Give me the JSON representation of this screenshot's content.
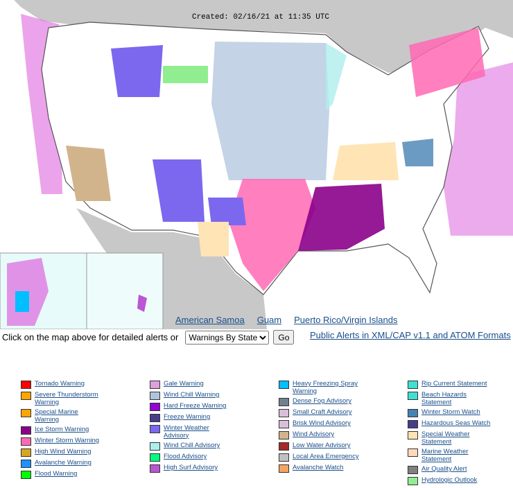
{
  "header": {
    "created": "Created: 02/16/21 at 11:35 UTC"
  },
  "map_links": [
    "American Samoa",
    "Guam",
    "Puerto Rico/Virgin Islands"
  ],
  "controls": {
    "prompt": "Click on the map above for detailed alerts or",
    "select": "Warnings By State",
    "button": "Go",
    "feed_link": "Public Alerts in XML/CAP v1.1 and ATOM Formats"
  },
  "legend": [
    [
      {
        "label": "Tornado Warning",
        "color": "#ff0000"
      },
      {
        "label": "Severe Thunderstorm Warning",
        "color": "#ffa500"
      },
      {
        "label": "Special Marine Warning",
        "color": "#ffa500"
      },
      {
        "label": "Ice Storm Warning",
        "color": "#8b008b"
      },
      {
        "label": "Winter Storm Warning",
        "color": "#ff69b4"
      },
      {
        "label": "High Wind Warning",
        "color": "#daa520"
      },
      {
        "label": "Avalanche Warning",
        "color": "#1e90ff"
      },
      {
        "label": "Flood Warning",
        "color": "#00ff00"
      }
    ],
    [
      {
        "label": "Gale Warning",
        "color": "#dda0dd"
      },
      {
        "label": "Wind Chill Warning",
        "color": "#b0c4de"
      },
      {
        "label": "Hard Freeze Warning",
        "color": "#9400d3"
      },
      {
        "label": "Freeze Warning",
        "color": "#483d8b"
      },
      {
        "label": "Winter Weather Advisory",
        "color": "#7b68ee"
      },
      {
        "label": "Wind Chill Advisory",
        "color": "#afeeee"
      },
      {
        "label": "Flood Advisory",
        "color": "#00ff7f"
      },
      {
        "label": "High Surf Advisory",
        "color": "#ba55d3"
      }
    ],
    [
      {
        "label": "Heavy Freezing Spray Warning",
        "color": "#00bfff"
      },
      {
        "label": "Dense Fog Advisory",
        "color": "#708090"
      },
      {
        "label": "Small Craft Advisory",
        "color": "#d8bfd8"
      },
      {
        "label": "Brisk Wind Advisory",
        "color": "#d8bfd8"
      },
      {
        "label": "Wind Advisory",
        "color": "#d2b48c"
      },
      {
        "label": "Low Water Advisory",
        "color": "#a52a2a"
      },
      {
        "label": "Local Area Emergency",
        "color": "#c0c0c0"
      },
      {
        "label": "Avalanche Watch",
        "color": "#f4a460"
      }
    ],
    [
      {
        "label": "Rip Current Statement",
        "color": "#40e0d0"
      },
      {
        "label": "Beach Hazards Statement",
        "color": "#40e0d0"
      },
      {
        "label": "Winter Storm Watch",
        "color": "#4682b4"
      },
      {
        "label": "Hazardous Seas Watch",
        "color": "#483d8b"
      },
      {
        "label": "Special Weather Statement",
        "color": "#ffe4b5"
      },
      {
        "label": "Marine Weather Statement",
        "color": "#ffdab9"
      },
      {
        "label": "Air Quality Alert",
        "color": "#808080"
      },
      {
        "label": "Hydrologic Outlook",
        "color": "#90ee90"
      }
    ]
  ]
}
